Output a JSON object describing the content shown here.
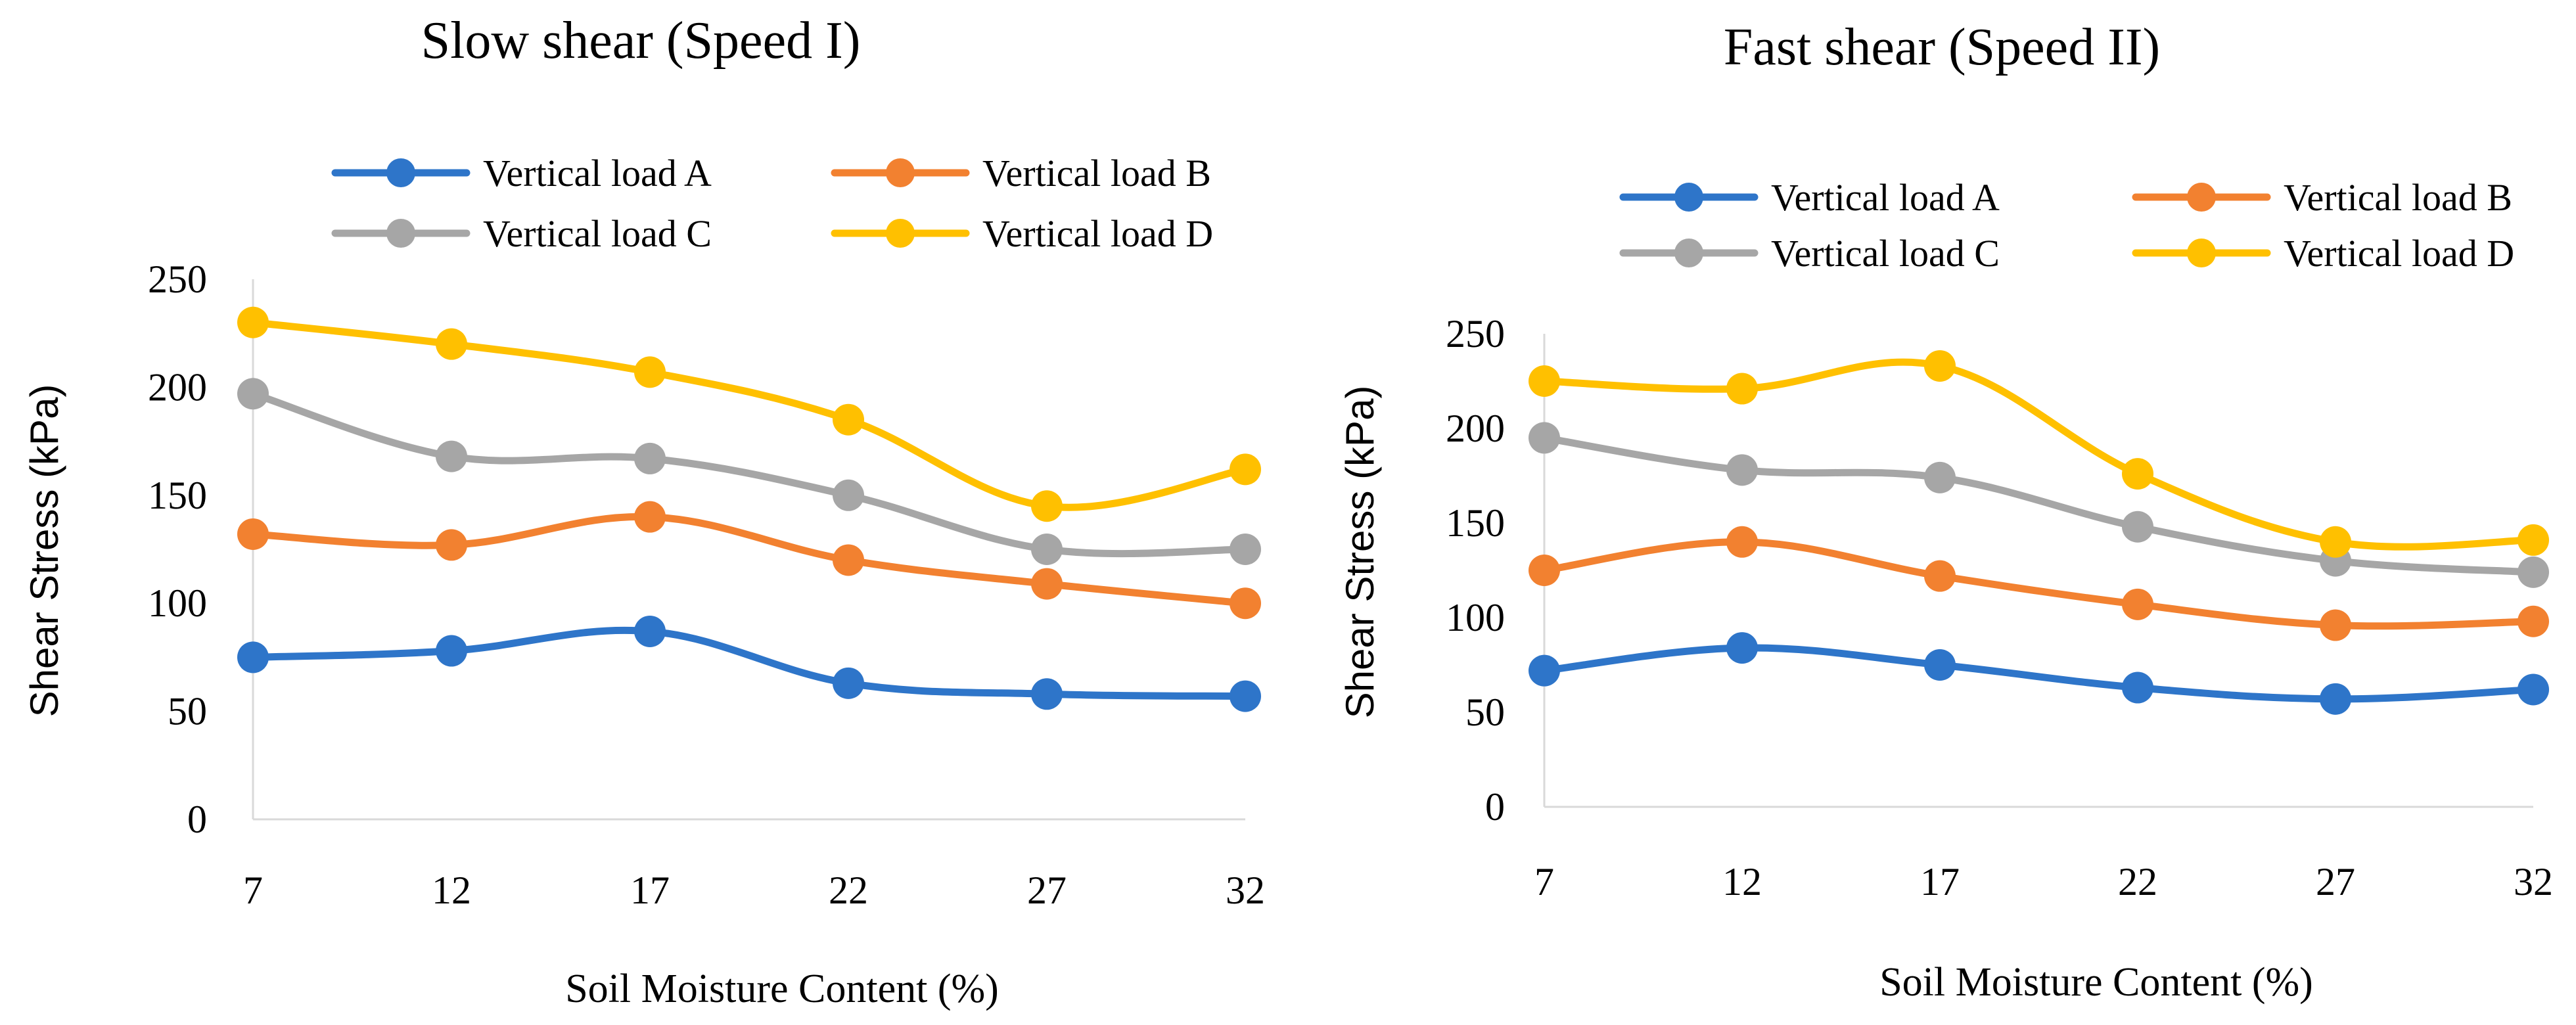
{
  "chart_data": [
    {
      "type": "line",
      "title": "Slow shear (Speed I)",
      "xlabel": "Soil Moisture Content (%)",
      "ylabel": "Shear Stress (kPa)",
      "categories": [
        "7",
        "12",
        "17",
        "22",
        "27",
        "32"
      ],
      "ylim": [
        0,
        250
      ],
      "yticks": [
        "0",
        "50",
        "100",
        "150",
        "200",
        "250"
      ],
      "legend_position": "top",
      "series": [
        {
          "name": "Vertical load A",
          "color": "#2E75C9",
          "values": [
            75,
            78,
            87,
            63,
            58,
            57
          ]
        },
        {
          "name": "Vertical load B",
          "color": "#F28130",
          "values": [
            132,
            127,
            140,
            120,
            109,
            100
          ]
        },
        {
          "name": "Vertical load C",
          "color": "#A6A6A6",
          "values": [
            197,
            168,
            167,
            150,
            125,
            125
          ]
        },
        {
          "name": "Vertical load D",
          "color": "#FFC000",
          "values": [
            230,
            220,
            207,
            185,
            145,
            162
          ]
        }
      ]
    },
    {
      "type": "line",
      "title": "Fast shear (Speed II)",
      "xlabel": "Soil Moisture Content (%)",
      "ylabel": "Shear Stress (kPa)",
      "categories": [
        "7",
        "12",
        "17",
        "22",
        "27",
        "32"
      ],
      "ylim": [
        0,
        250
      ],
      "yticks": [
        "0",
        "50",
        "100",
        "150",
        "200",
        "250"
      ],
      "legend_position": "top",
      "series": [
        {
          "name": "Vertical load A",
          "color": "#2E75C9",
          "values": [
            72,
            84,
            75,
            63,
            57,
            62
          ]
        },
        {
          "name": "Vertical load B",
          "color": "#F28130",
          "values": [
            125,
            140,
            122,
            107,
            96,
            98
          ]
        },
        {
          "name": "Vertical load C",
          "color": "#A6A6A6",
          "values": [
            195,
            178,
            174,
            148,
            130,
            124
          ]
        },
        {
          "name": "Vertical load D",
          "color": "#FFC000",
          "values": [
            225,
            221,
            233,
            176,
            140,
            141
          ]
        }
      ]
    }
  ]
}
